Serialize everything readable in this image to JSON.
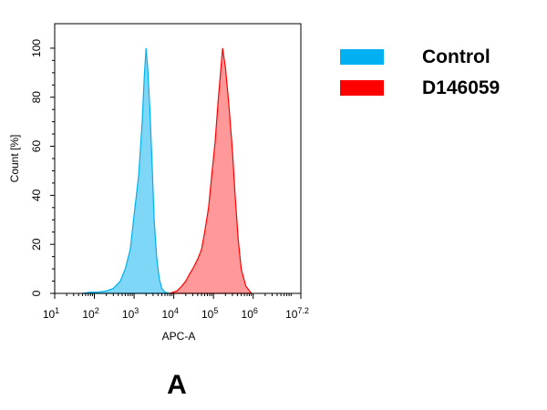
{
  "chart_data": {
    "type": "area",
    "xlabel": "APC-A",
    "ylabel": "Count [%]",
    "x_scale": "log10",
    "xlim": [
      10,
      15848932
    ],
    "ylim": [
      0,
      110
    ],
    "x_ticks": [
      {
        "base": "10",
        "exp": "1",
        "value": 10
      },
      {
        "base": "10",
        "exp": "2",
        "value": 100
      },
      {
        "base": "10",
        "exp": "3",
        "value": 1000
      },
      {
        "base": "10",
        "exp": "4",
        "value": 10000
      },
      {
        "base": "10",
        "exp": "5",
        "value": 100000
      },
      {
        "base": "10",
        "exp": "6",
        "value": 1000000
      },
      {
        "base": "10",
        "exp": "7.2",
        "value": 15848932
      }
    ],
    "y_ticks": [
      "0",
      "20",
      "40",
      "60",
      "80",
      "100"
    ],
    "grid": false,
    "legend_position": "right",
    "series": [
      {
        "name": "Control",
        "color": "#00b0f0",
        "x": [
          50,
          80,
          120,
          200,
          300,
          450,
          600,
          800,
          1000,
          1300,
          1600,
          1800,
          2000,
          2200,
          2500,
          2800,
          3200,
          3700,
          4300,
          5000,
          6000,
          8000
        ],
        "y": [
          0,
          0.5,
          0.5,
          1,
          2,
          5,
          10,
          18,
          32,
          48,
          70,
          88,
          100,
          92,
          75,
          55,
          30,
          15,
          6,
          2,
          0.5,
          0
        ]
      },
      {
        "name": "D146059",
        "color": "#ff0000",
        "x": [
          8000,
          12000,
          16000,
          20000,
          25000,
          30000,
          40000,
          50000,
          60000,
          75000,
          90000,
          110000,
          130000,
          150000,
          170000,
          200000,
          240000,
          300000,
          350000,
          420000,
          500000,
          650000,
          900000
        ],
        "y": [
          0,
          1,
          3,
          5,
          8,
          10,
          14,
          18,
          25,
          35,
          48,
          62,
          78,
          90,
          100,
          92,
          78,
          58,
          40,
          22,
          10,
          3,
          0
        ]
      }
    ]
  },
  "panel_label": "A"
}
